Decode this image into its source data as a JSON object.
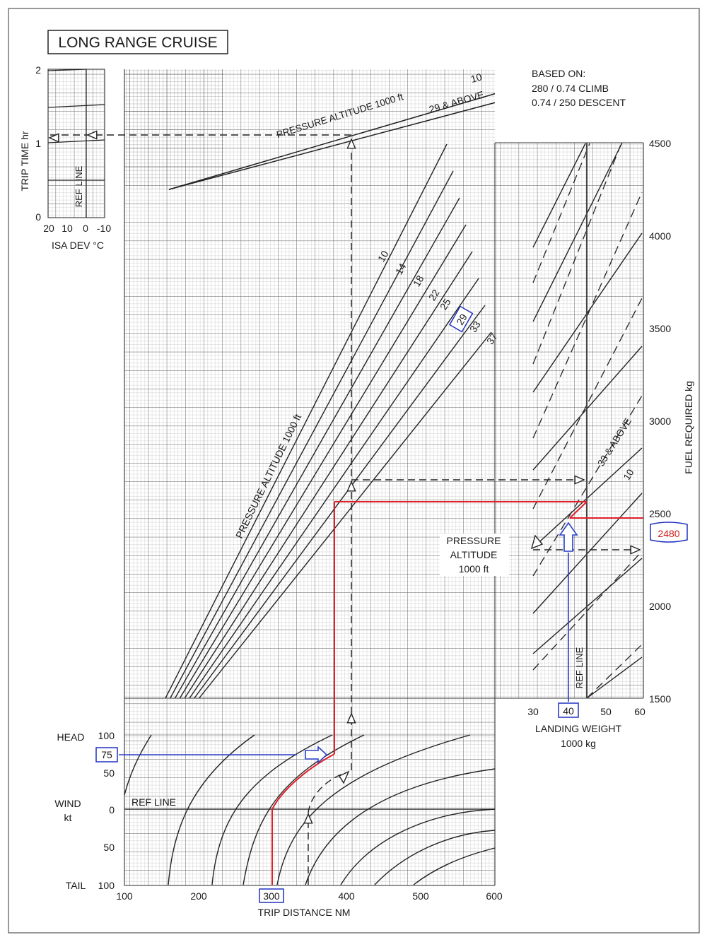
{
  "chart_data": {
    "type": "line",
    "title": "LONG RANGE CRUISE",
    "based_on": [
      "BASED ON:",
      "280 / 0.74 CLIMB",
      "0.74 / 250 DESCENT"
    ],
    "panels": {
      "trip_time": {
        "ylabel": "TRIP TIME  hr",
        "ylim": [
          0,
          2
        ],
        "y_ticks": [
          "0",
          "1",
          "2"
        ],
        "isa_xlabel": "ISA DEV °C",
        "isa_ticks": [
          "20",
          "10",
          "0",
          "-10"
        ],
        "ref_line_label": "REF LINE",
        "curves_title": "PRESSURE ALTITUDE  1000 ft",
        "series": [
          {
            "name": "10",
            "points": [
              [
                160,
                0.38
              ],
              [
                600,
                1.67
              ]
            ]
          },
          {
            "name": "29 & ABOVE",
            "points": [
              [
                160,
                0.38
              ],
              [
                600,
                1.55
              ]
            ]
          }
        ]
      },
      "fuel_distance": {
        "curves_title": "PRESSURE ALTITUDE  1000 ft",
        "series": [
          {
            "name": "10",
            "points": [
              [
                160,
                1500
              ],
              [
                552,
                4500
              ]
            ]
          },
          {
            "name": "14",
            "points": [
              [
                168,
                1500
              ],
              [
                576,
                4500
              ]
            ]
          },
          {
            "name": "18",
            "points": [
              [
                176,
                1500
              ],
              [
                600,
                4500
              ]
            ]
          },
          {
            "name": "22",
            "points": [
              [
                184,
                1500
              ],
              [
                630,
                4500
              ]
            ]
          },
          {
            "name": "25",
            "points": [
              [
                188,
                1500
              ],
              [
                655,
                4500
              ]
            ]
          },
          {
            "name": "29",
            "points": [
              [
                192,
                1500
              ],
              [
                680,
                4500
              ]
            ]
          },
          {
            "name": "33",
            "points": [
              [
                196,
                1500
              ],
              [
                705,
                4500
              ]
            ]
          },
          {
            "name": "37",
            "points": [
              [
                200,
                1500
              ],
              [
                730,
                4500
              ]
            ]
          }
        ]
      },
      "landing_weight": {
        "xlabel": "LANDING WEIGHT",
        "xunit": "1000 kg",
        "xlim": [
          30,
          60
        ],
        "x_ticks": [
          "30",
          "40",
          "50",
          "60"
        ],
        "ylabel": "FUEL REQUIRED  kg",
        "ylim": [
          1500,
          4500
        ],
        "y_ticks": [
          "1500",
          "2000",
          "2500",
          "3000",
          "3500",
          "4000",
          "4500"
        ],
        "ref_line_label": "REF LINE",
        "legend_box": [
          "PRESSURE",
          "ALTITUDE",
          "1000 ft"
        ],
        "series_labels": [
          "33 & ABOVE",
          "10"
        ]
      },
      "wind": {
        "ylabel": [
          "HEAD",
          "WIND",
          "kt",
          "TAIL"
        ],
        "y_ticks": [
          "100",
          "50",
          "0",
          "50",
          "100"
        ],
        "ref_line_label": "REF LINE",
        "xlabel": "TRIP DISTANCE  NM",
        "x_ticks": [
          "100",
          "200",
          "300",
          "400",
          "500",
          "600"
        ],
        "xlim": [
          100,
          600
        ]
      }
    },
    "example": {
      "trip_distance_nm": 300,
      "headwind_kt": 75,
      "pressure_altitude_1000ft": 29,
      "landing_weight_1000kg": 40,
      "fuel_required_kg": 2480,
      "labels": {
        "distance": "300",
        "wind": "75",
        "altitude": "29",
        "weight": "40",
        "fuel": "2480"
      }
    },
    "grid": true
  }
}
